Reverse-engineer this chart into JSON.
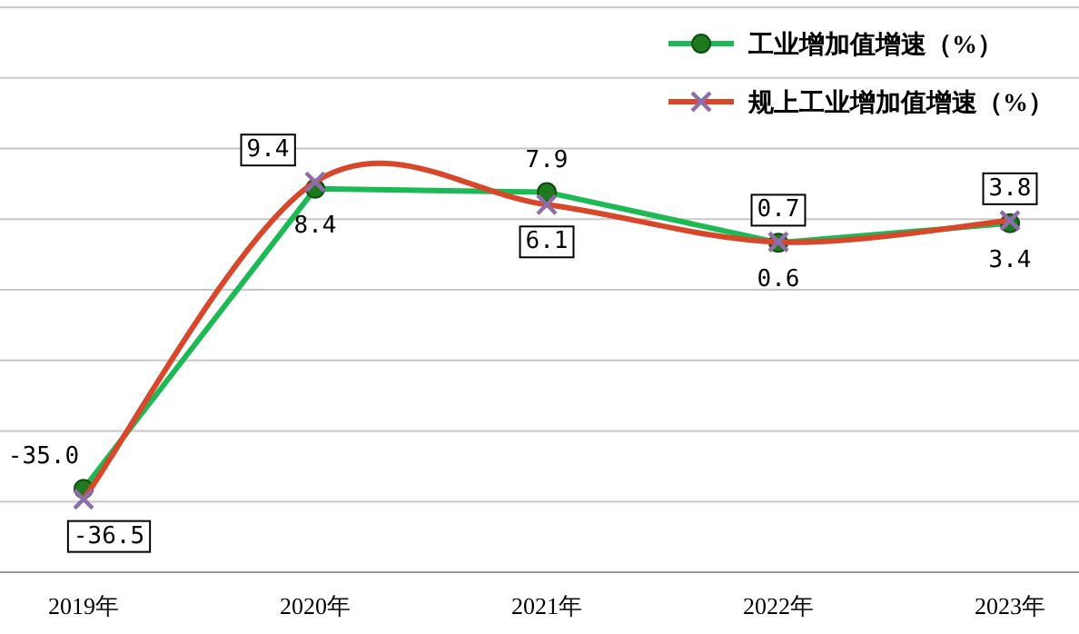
{
  "chart_data": {
    "type": "line",
    "categories": [
      "2019年",
      "2020年",
      "2021年",
      "2022年",
      "2023年"
    ],
    "tick_labels": "x",
    "grid": "y",
    "legend": "top right",
    "series": [
      {
        "name": "工业增加值增速（%）",
        "color": "#1db954",
        "marker": "circle",
        "values": [
          -35.0,
          8.4,
          7.9,
          0.6,
          3.4
        ],
        "value_labels": [
          "-35.0",
          "8.4",
          "7.9",
          "0.6",
          "3.4"
        ]
      },
      {
        "name": "规上工业增加值增速（%）",
        "color": "#d9472b",
        "marker": "cross",
        "values": [
          -36.5,
          9.4,
          6.1,
          0.7,
          3.8
        ],
        "value_labels": [
          "-36.5",
          "9.4",
          "6.1",
          "0.7",
          "3.8"
        ]
      }
    ]
  }
}
